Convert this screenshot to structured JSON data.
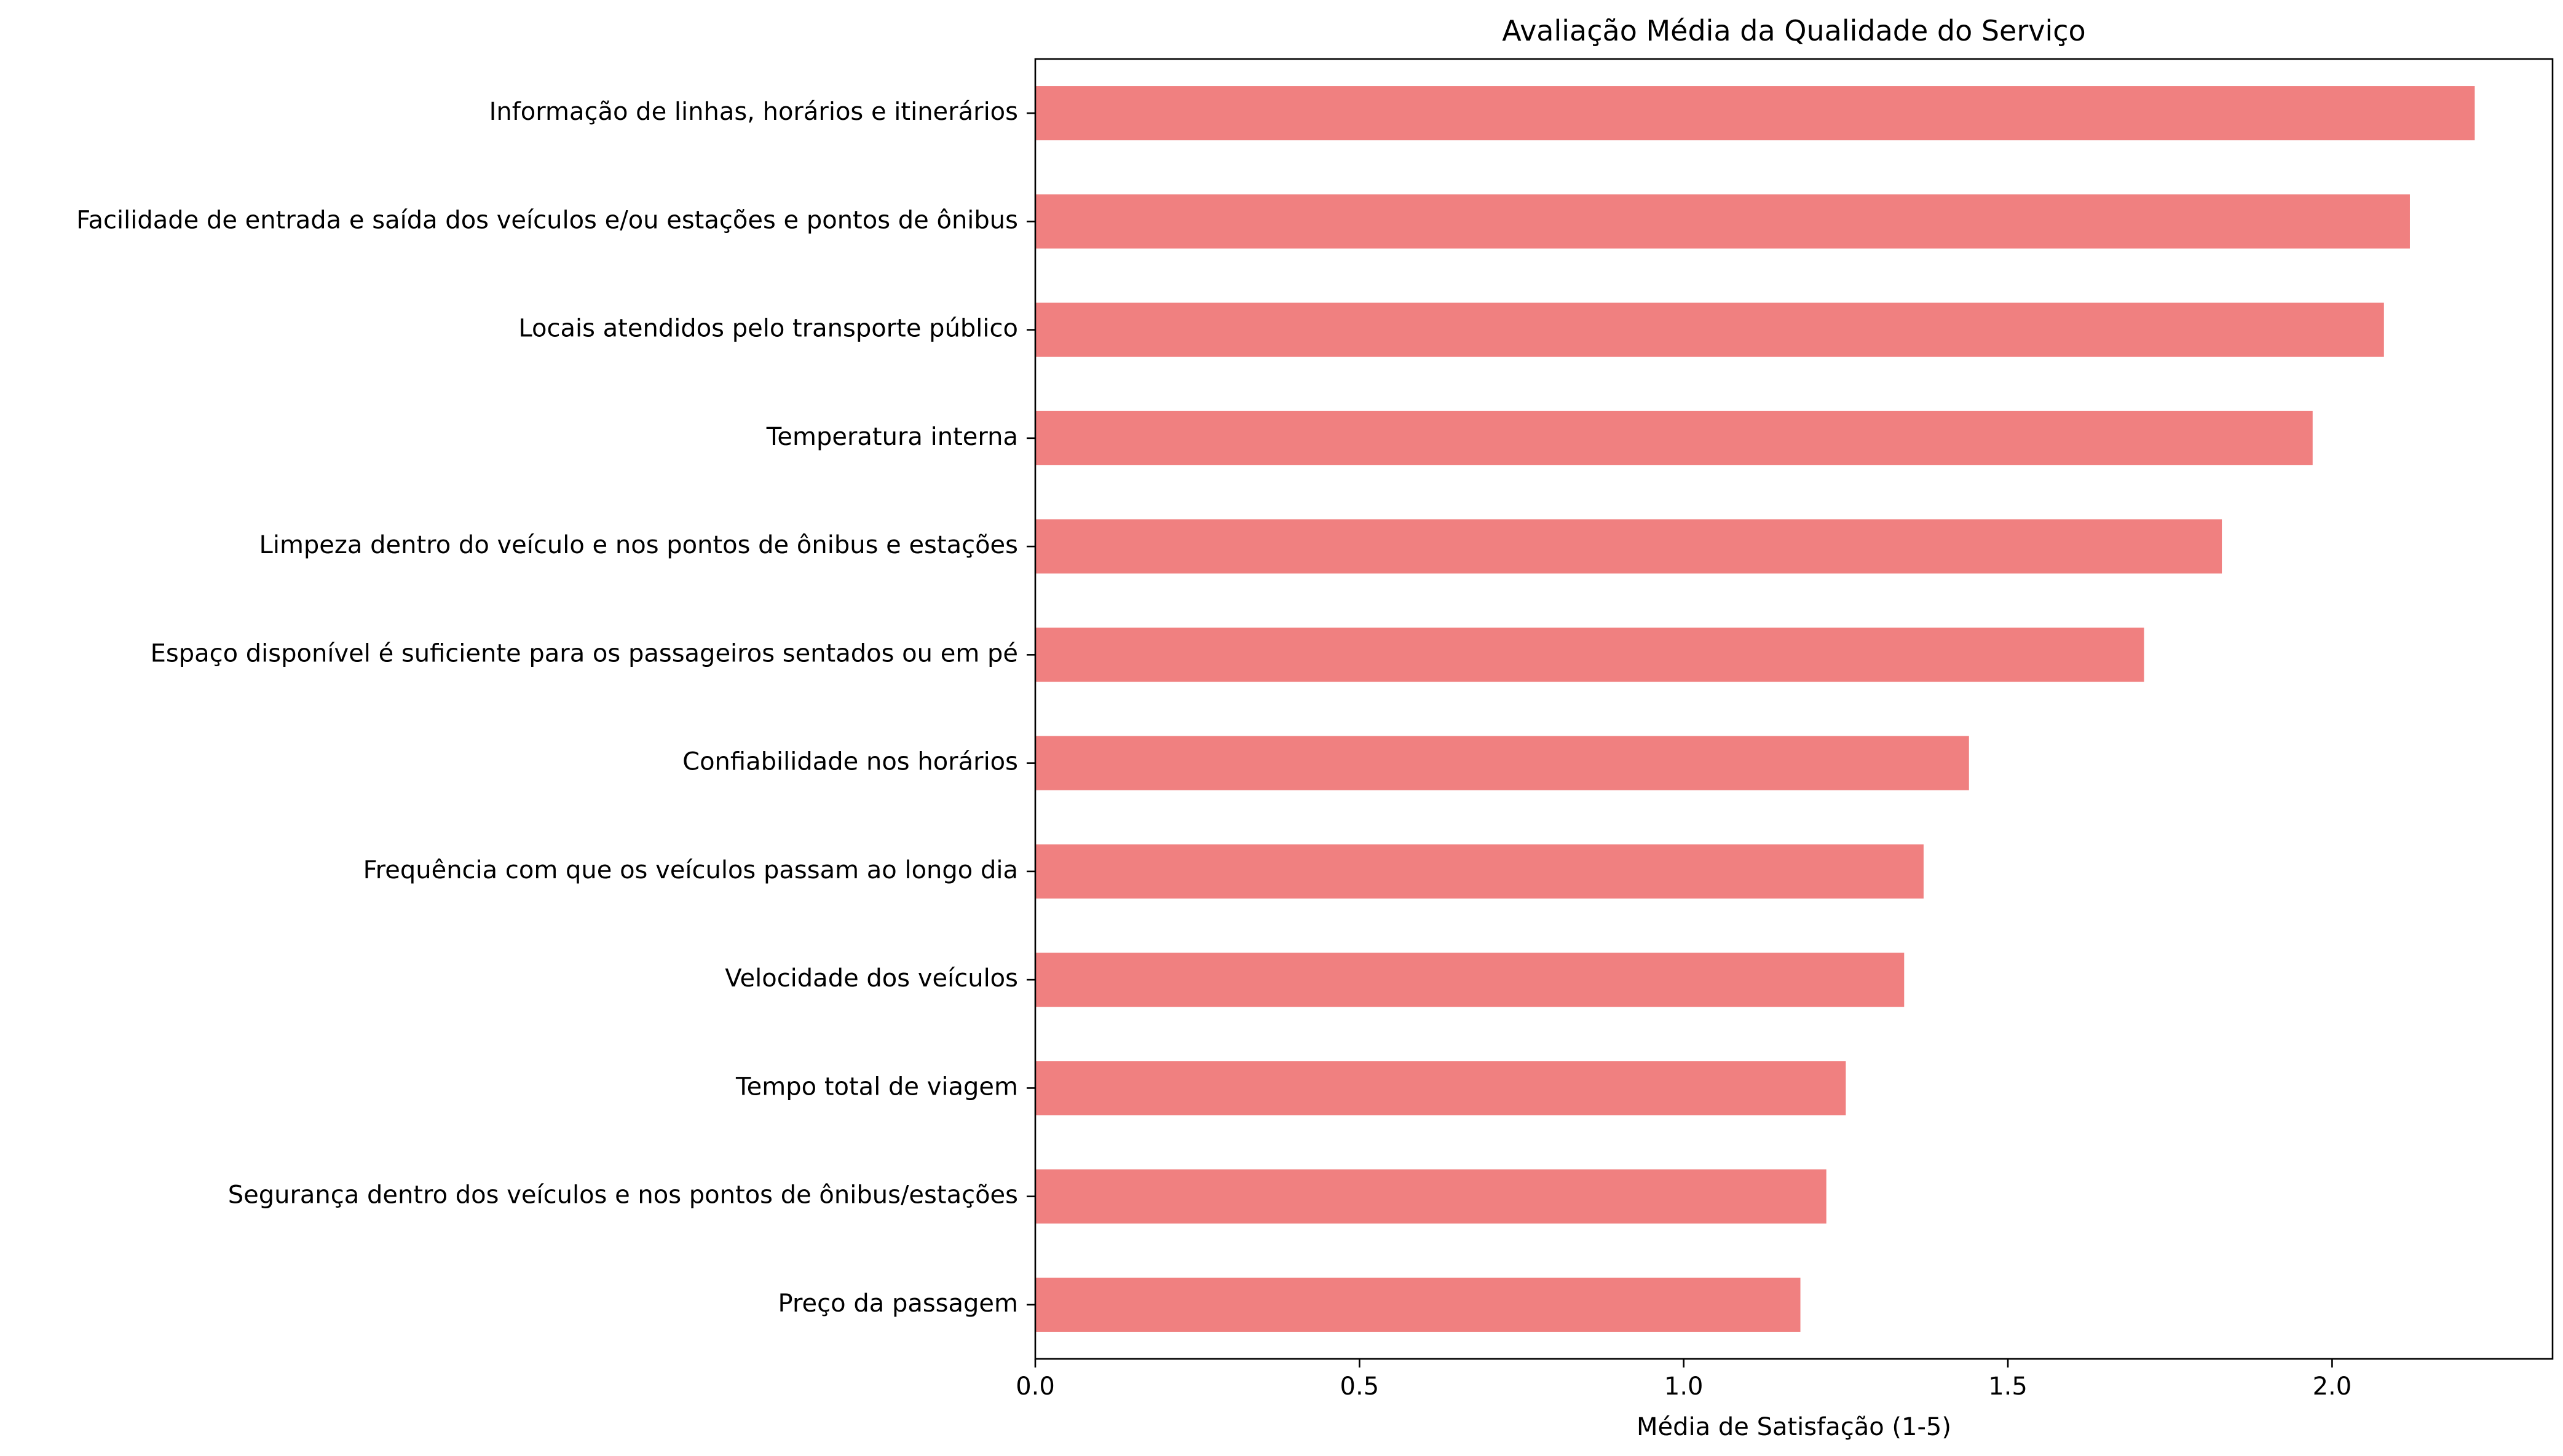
{
  "chart_data": {
    "type": "bar",
    "orientation": "horizontal",
    "title": "Avaliação Média da Qualidade do Serviço",
    "xlabel": "Média de Satisfação (1-5)",
    "ylabel": "",
    "categories": [
      "Informação de linhas, horários e itinerários ",
      "Facilidade de entrada e saída dos veículos e/ou estações e pontos de ônibus ",
      "Locais atendidos pelo transporte público",
      "Temperatura interna",
      "Limpeza dentro do veículo e nos pontos de ônibus e estações",
      "Espaço disponível é suficiente para os passageiros sentados ou em pé",
      "Confiabilidade nos horários",
      "Frequência com que os veículos passam ao longo dia",
      "Velocidade dos veículos ",
      "Tempo total de viagem ",
      "Segurança dentro dos veículos e nos pontos de ônibus/estações",
      "Preço da passagem"
    ],
    "values": [
      2.22,
      2.12,
      2.08,
      1.97,
      1.83,
      1.71,
      1.44,
      1.37,
      1.34,
      1.25,
      1.22,
      1.18
    ],
    "xlim": [
      0,
      2.34
    ],
    "xticks": [
      0.0,
      0.5,
      1.0,
      1.5,
      2.0
    ],
    "xtick_labels": [
      "0.0",
      "0.5",
      "1.0",
      "1.5",
      "2.0"
    ],
    "grid": false,
    "legend": "none",
    "bar_color": "#f08080"
  }
}
